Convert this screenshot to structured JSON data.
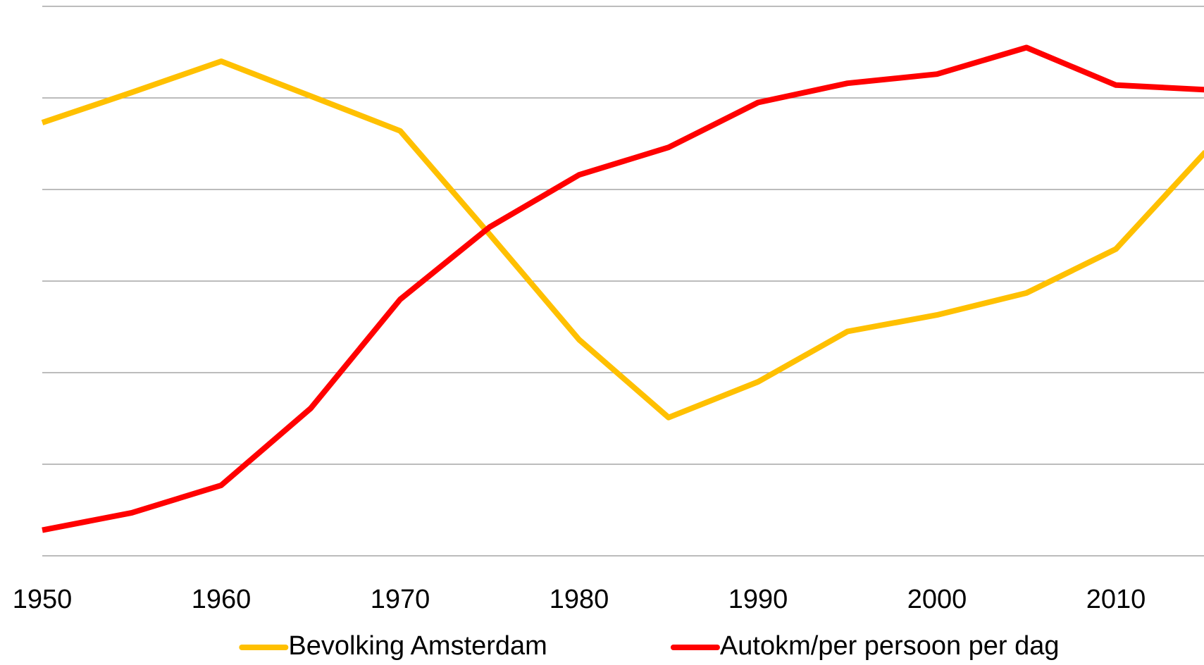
{
  "chart_data": {
    "type": "line",
    "x": [
      1950,
      1955,
      1960,
      1965,
      1970,
      1975,
      1980,
      1985,
      1990,
      1995,
      2000,
      2005,
      2010,
      2015
    ],
    "series": [
      {
        "name": "Bevolking Amsterdam",
        "color": "#FFC000",
        "values": [
          4.73,
          5.06,
          5.4,
          5.02,
          4.64,
          3.51,
          2.36,
          1.51,
          1.9,
          2.45,
          2.63,
          2.87,
          3.35,
          4.41
        ]
      },
      {
        "name": "Autokm/per persoon per dag",
        "color": "#FF0000",
        "values": [
          0.28,
          0.47,
          0.77,
          1.61,
          2.8,
          3.59,
          4.16,
          4.46,
          4.95,
          5.16,
          5.26,
          5.55,
          5.14,
          5.09
        ]
      }
    ],
    "xlim": [
      1950,
      2015
    ],
    "xticks": [
      1950,
      1960,
      1970,
      1980,
      1990,
      2000,
      2010
    ],
    "ylim": [
      0,
      6
    ],
    "yticks": [
      0,
      1,
      2,
      3,
      4,
      5,
      6
    ],
    "grid": true,
    "legend": "bottom"
  }
}
